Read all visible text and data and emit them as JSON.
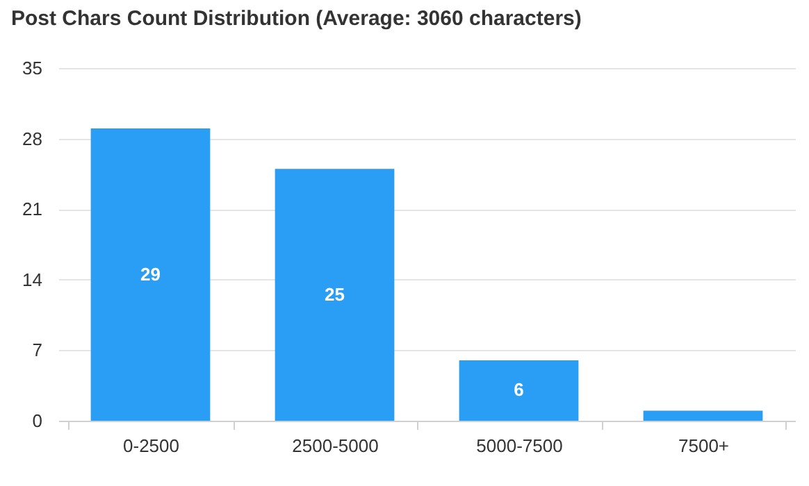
{
  "chart_data": {
    "type": "bar",
    "title": "Post Chars Count Distribution (Average: 3060 characters)",
    "categories": [
      "0-2500",
      "2500-5000",
      "5000-7500",
      "7500+"
    ],
    "values": [
      29,
      25,
      6,
      1
    ],
    "value_labels": [
      "29",
      "25",
      "6",
      null
    ],
    "color": "#2a9df4",
    "ylim": [
      0,
      35
    ],
    "yticks": [
      0,
      7,
      14,
      21,
      28,
      35
    ],
    "grid": "y"
  }
}
